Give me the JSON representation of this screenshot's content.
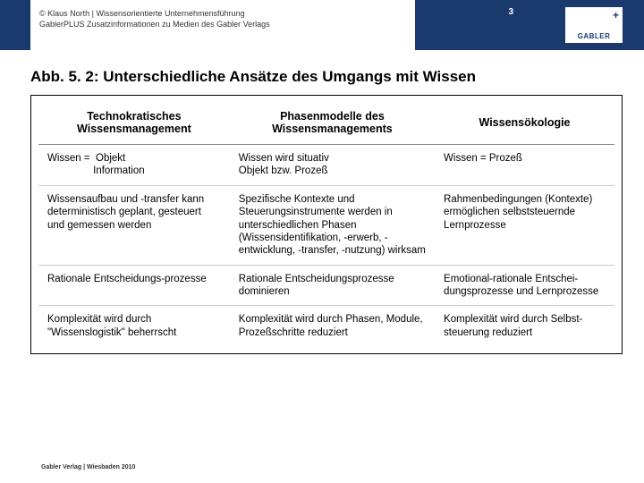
{
  "header": {
    "credit_line1": "© Klaus North | Wissensorientierte Unternehmensführung",
    "credit_line2": "GablerPLUS Zusatzinformationen zu Medien des Gabler Verlags",
    "page_number": "3",
    "logo_text": "GABLER",
    "logo_plus": "+"
  },
  "title": "Abb. 5. 2: Unterschiedliche Ansätze des Umgangs mit Wissen",
  "table": {
    "columns": [
      "Technokratisches Wissensmanagement",
      "Phasenmodelle des Wissensmanagements",
      "Wissensökologie"
    ],
    "rows": [
      [
        "Wissen =  Objekt\n                Information",
        "Wissen wird situativ\nObjekt bzw. Prozeß",
        "Wissen = Prozeß"
      ],
      [
        "Wissensaufbau und -transfer kann deterministisch geplant, gesteuert und gemessen werden",
        "Spezifische Kontexte und Steuerungsinstrumente werden in unterschiedlichen Phasen (Wissensidentifikation, -erwerb, -entwicklung, -transfer, -nutzung) wirksam",
        "Rahmenbedingungen (Kontexte) ermöglichen selbststeuernde Lernprozesse"
      ],
      [
        "Rationale Entscheidungs-prozesse",
        "Rationale Entscheidungsprozesse dominieren",
        "Emotional-rationale Entschei-dungsprozesse und Lernprozesse"
      ],
      [
        "Komplexität wird durch \"Wissenslogistik\" beherrscht",
        "Komplexität wird durch Phasen, Module, Prozeßschritte reduziert",
        "Komplexität wird durch Selbst-steuerung reduziert"
      ]
    ]
  },
  "footer": "Gabler Verlag | Wiesbaden 2010",
  "colors": {
    "header_bg": "#1a3a6e",
    "text": "#000000",
    "border": "#000000"
  }
}
